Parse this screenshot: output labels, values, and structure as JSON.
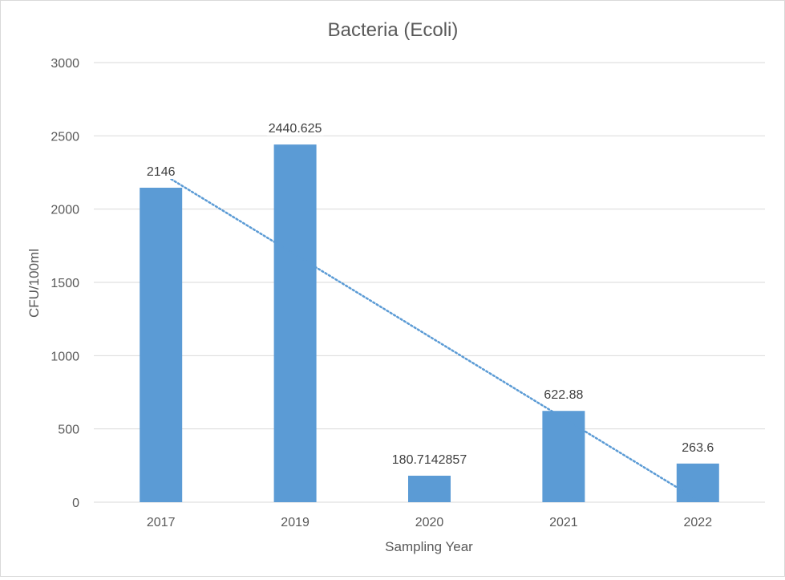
{
  "chart_data": {
    "type": "bar",
    "title": "Bacteria (Ecoli)",
    "xlabel": "Sampling Year",
    "ylabel": "CFU/100ml",
    "categories": [
      "2017",
      "2019",
      "2020",
      "2021",
      "2022"
    ],
    "series": [
      {
        "values": [
          2146,
          2440.625,
          180.7142857,
          622.88,
          263.6
        ],
        "data_labels": [
          "2146",
          "2440.625",
          "180.7142857",
          "622.88",
          "263.6"
        ],
        "color": "#5b9bd5"
      }
    ],
    "trendline": {
      "type": "linear",
      "style": "dotted",
      "color": "#5b9bd5"
    },
    "ylim": [
      0,
      3000
    ],
    "yticks": [
      0,
      500,
      1000,
      1500,
      2000,
      2500,
      3000
    ],
    "grid": true,
    "legend": "none",
    "colors": {
      "gridline": "#d9d9d9",
      "text": "#595959"
    }
  }
}
